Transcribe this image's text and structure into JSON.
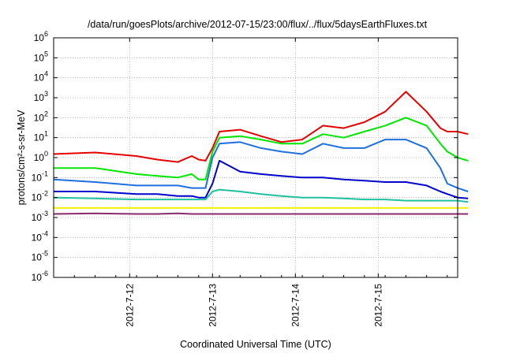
{
  "chart_data": {
    "type": "line",
    "title": "/data/run/goesPlots/archive/2012-07-15/23:00/flux/../flux/5daysEarthFluxes.txt",
    "xlabel": "Coordinated Universal Time (UTC)",
    "ylabel": "protons/cm²-s-sr-MeV",
    "yscale": "log",
    "xlim": [
      "2012-07-11 02:00",
      "2012-07-15 23:00"
    ],
    "ylim": [
      1e-06,
      1000000.0
    ],
    "grid": true,
    "x_ticks": [
      "2012-7-12",
      "2012-7-13",
      "2012-7-14",
      "2012-7-15"
    ],
    "y_ticks": [
      {
        "base": "10",
        "exp": "-6"
      },
      {
        "base": "10",
        "exp": "-5"
      },
      {
        "base": "10",
        "exp": "-4"
      },
      {
        "base": "10",
        "exp": "-3"
      },
      {
        "base": "10",
        "exp": "-2"
      },
      {
        "base": "10",
        "exp": "-1"
      },
      {
        "base": "10",
        "exp": "0"
      },
      {
        "base": "10",
        "exp": "1"
      },
      {
        "base": "10",
        "exp": "2"
      },
      {
        "base": "10",
        "exp": "3"
      },
      {
        "base": "10",
        "exp": "4"
      },
      {
        "base": "10",
        "exp": "5"
      },
      {
        "base": "10",
        "exp": "6"
      }
    ],
    "x_hours": [
      0,
      12,
      24,
      30,
      36,
      40,
      42,
      44,
      46,
      48,
      54,
      60,
      66,
      72,
      78,
      84,
      90,
      96,
      102,
      108,
      112,
      114,
      117,
      120
    ],
    "series": [
      {
        "color": "#e60000",
        "values": [
          1.5,
          1.8,
          1.2,
          0.8,
          0.6,
          1.2,
          0.8,
          0.7,
          3,
          20,
          25,
          12,
          6,
          8,
          40,
          30,
          60,
          200,
          2000,
          200,
          30,
          20,
          20,
          15
        ]
      },
      {
        "color": "#00e600",
        "values": [
          0.3,
          0.3,
          0.15,
          0.12,
          0.1,
          0.15,
          0.08,
          0.08,
          2,
          10,
          12,
          8,
          5,
          5,
          15,
          10,
          20,
          40,
          100,
          40,
          5,
          2,
          1,
          0.7
        ]
      },
      {
        "color": "#1e6fe0",
        "values": [
          0.08,
          0.06,
          0.04,
          0.04,
          0.04,
          0.03,
          0.03,
          0.03,
          1,
          5,
          6,
          3,
          2,
          1.5,
          5,
          3,
          3,
          8,
          8,
          3,
          0.3,
          0.05,
          0.03,
          0.02
        ]
      },
      {
        "color": "#0000cc",
        "values": [
          0.02,
          0.02,
          0.015,
          0.015,
          0.012,
          0.012,
          0.01,
          0.01,
          0.05,
          0.7,
          0.2,
          0.15,
          0.12,
          0.1,
          0.1,
          0.08,
          0.07,
          0.06,
          0.06,
          0.04,
          0.02,
          0.015,
          0.01,
          0.009
        ]
      },
      {
        "color": "#20c0a0",
        "values": [
          0.01,
          0.009,
          0.008,
          0.008,
          0.008,
          0.008,
          0.008,
          0.008,
          0.02,
          0.025,
          0.02,
          0.015,
          0.012,
          0.01,
          0.01,
          0.009,
          0.008,
          0.008,
          0.007,
          0.007,
          0.007,
          0.007,
          0.007,
          0.006
        ]
      },
      {
        "color": "#f2f200",
        "values": [
          0.003,
          0.003,
          0.003,
          0.003,
          0.003,
          0.003,
          0.003,
          0.003,
          0.003,
          0.003,
          0.003,
          0.003,
          0.003,
          0.003,
          0.003,
          0.003,
          0.003,
          0.003,
          0.003,
          0.003,
          0.003,
          0.003,
          0.003,
          0.003
        ]
      },
      {
        "color": "#8b2a6b",
        "values": [
          0.0015,
          0.0016,
          0.0015,
          0.0015,
          0.0016,
          0.0015,
          0.0015,
          0.0015,
          0.0015,
          0.0015,
          0.0015,
          0.0015,
          0.0015,
          0.0015,
          0.0015,
          0.0015,
          0.0015,
          0.0015,
          0.0015,
          0.0015,
          0.0015,
          0.0015,
          0.0015,
          0.0015
        ]
      }
    ]
  }
}
